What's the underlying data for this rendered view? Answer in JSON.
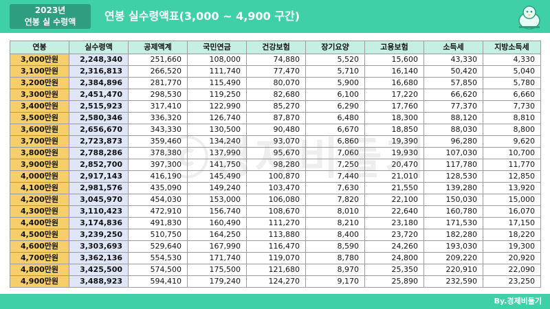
{
  "header": {
    "year_label": "2023년",
    "subtitle_label": "연봉 실 수령액",
    "title": "연봉 실수령액표(3,000 ~ 4,900 구간)",
    "logo_icon": "bird-mascot-icon"
  },
  "table": {
    "columns": [
      "연봉",
      "실수령액",
      "공제액계",
      "국민연금",
      "건강보험",
      "장기요양",
      "고용보험",
      "소득세",
      "지방소득세"
    ],
    "rows": [
      [
        "3,000만원",
        "2,248,340",
        "251,660",
        "108,000",
        "74,880",
        "5,520",
        "15,600",
        "43,330",
        "4,330"
      ],
      [
        "3,100만원",
        "2,316,813",
        "266,520",
        "111,740",
        "77,470",
        "5,710",
        "16,140",
        "50,420",
        "5,040"
      ],
      [
        "3,200만원",
        "2,384,896",
        "281,770",
        "115,490",
        "80,070",
        "5,900",
        "16,680",
        "57,850",
        "5,780"
      ],
      [
        "3,300만원",
        "2,451,470",
        "298,530",
        "119,250",
        "82,680",
        "6,100",
        "17,220",
        "66,620",
        "6,660"
      ],
      [
        "3,400만원",
        "2,515,923",
        "317,410",
        "122,990",
        "85,270",
        "6,290",
        "17,760",
        "77,370",
        "7,730"
      ],
      [
        "3,500만원",
        "2,580,346",
        "336,320",
        "126,740",
        "87,870",
        "6,480",
        "18,300",
        "88,120",
        "8,810"
      ],
      [
        "3,600만원",
        "2,656,670",
        "343,330",
        "130,500",
        "90,480",
        "6,670",
        "18,850",
        "88,030",
        "8,800"
      ],
      [
        "3,700만원",
        "2,723,873",
        "359,460",
        "134,240",
        "93,070",
        "6,860",
        "19,390",
        "96,280",
        "9,620"
      ],
      [
        "3,800만원",
        "2,788,286",
        "378,380",
        "137,990",
        "95,670",
        "7,060",
        "19,930",
        "107,030",
        "10,700"
      ],
      [
        "3,900만원",
        "2,852,700",
        "397,300",
        "141,750",
        "98,280",
        "7,250",
        "20,470",
        "117,780",
        "11,770"
      ],
      [
        "4,000만원",
        "2,917,143",
        "416,190",
        "145,490",
        "100,870",
        "7,440",
        "21,010",
        "128,530",
        "12,850"
      ],
      [
        "4,100만원",
        "2,981,576",
        "435,090",
        "149,240",
        "103,470",
        "7,630",
        "21,550",
        "139,280",
        "13,920"
      ],
      [
        "4,200만원",
        "3,045,970",
        "454,030",
        "153,000",
        "106,080",
        "7,820",
        "22,100",
        "150,030",
        "15,000"
      ],
      [
        "4,300만원",
        "3,110,423",
        "472,910",
        "156,740",
        "108,670",
        "8,010",
        "22,640",
        "160,780",
        "16,070"
      ],
      [
        "4,400만원",
        "3,174,836",
        "491,830",
        "160,490",
        "111,270",
        "8,210",
        "23,180",
        "171,530",
        "17,150"
      ],
      [
        "4,500만원",
        "3,239,250",
        "510,750",
        "164,250",
        "113,880",
        "8,400",
        "23,720",
        "182,280",
        "18,220"
      ],
      [
        "4,600만원",
        "3,303,693",
        "529,640",
        "167,990",
        "116,470",
        "8,590",
        "24,260",
        "193,030",
        "19,300"
      ],
      [
        "4,700만원",
        "3,362,136",
        "554,530",
        "171,740",
        "119,070",
        "8,780",
        "24,800",
        "209,220",
        "20,920"
      ],
      [
        "4,800만원",
        "3,425,500",
        "574,500",
        "175,500",
        "121,680",
        "8,970",
        "25,350",
        "220,910",
        "22,090"
      ],
      [
        "4,900만원",
        "3,488,923",
        "594,410",
        "179,240",
        "124,270",
        "9,170",
        "25,890",
        "232,590",
        "23,250"
      ]
    ]
  },
  "watermark": "ⓒ경제비둘기",
  "footer": {
    "credit": "By.경제비둘기"
  },
  "colors": {
    "header_bg": "#3fd0a8",
    "year_box_bg": "#2f9d7f",
    "table_header_bg": "#c6efe4",
    "salary_col_bg": "#f6cf6a",
    "net_col_bg": "#dfe6f7"
  }
}
